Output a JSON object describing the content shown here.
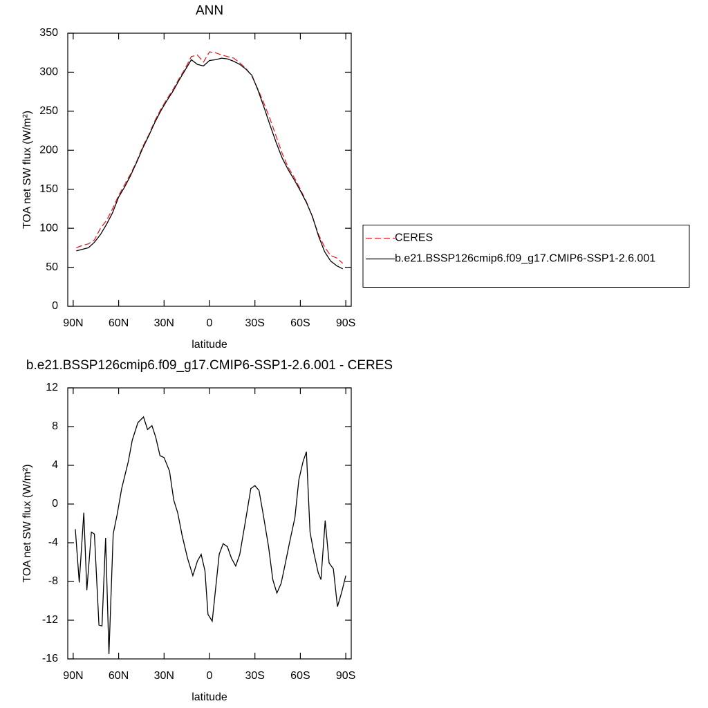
{
  "chart_data": [
    {
      "type": "line",
      "title": "ANN",
      "xlabel": "latitude",
      "ylabel": "TOA net SW flux (W/m²)",
      "x": [
        88,
        84,
        80,
        76,
        72,
        68,
        64,
        60,
        56,
        52,
        48,
        44,
        40,
        36,
        32,
        28,
        24,
        20,
        16,
        12,
        8,
        4,
        0,
        -4,
        -8,
        -12,
        -16,
        -20,
        -24,
        -28,
        -32,
        -36,
        -40,
        -44,
        -48,
        -52,
        -56,
        -60,
        -64,
        -68,
        -72,
        -76,
        -80,
        -84,
        -88
      ],
      "series": [
        {
          "name": "CERES",
          "color": "#e8202a",
          "style": "dashed",
          "values": [
            75,
            78,
            80,
            85,
            100,
            110,
            125,
            142,
            156,
            170,
            186,
            205,
            220,
            238,
            253,
            266,
            278,
            292,
            305,
            320,
            322,
            313,
            326,
            325,
            322,
            320,
            318,
            312,
            305,
            295,
            278,
            260,
            240,
            218,
            196,
            178,
            165,
            150,
            134,
            114,
            92,
            76,
            65,
            62,
            55
          ]
        },
        {
          "name": "b.e21.BSSP126cmip6.f09_g17.CMIP6-SSP1-2.6.001",
          "color": "#000000",
          "style": "solid",
          "values": [
            71,
            73,
            75,
            82,
            92,
            105,
            120,
            140,
            153,
            168,
            185,
            203,
            219,
            236,
            251,
            264,
            276,
            290,
            303,
            316,
            310,
            308,
            315,
            316,
            318,
            317,
            314,
            310,
            304,
            296,
            277,
            255,
            232,
            210,
            190,
            175,
            162,
            148,
            133,
            115,
            90,
            70,
            58,
            52,
            48
          ]
        }
      ],
      "xlim": [
        93.6,
        -93.6
      ],
      "xticks": [
        {
          "value": 90,
          "label": "90N"
        },
        {
          "value": 60,
          "label": "60N"
        },
        {
          "value": 30,
          "label": "30N"
        },
        0,
        {
          "value": -30,
          "label": "30S"
        },
        {
          "value": -60,
          "label": "60S"
        },
        {
          "value": -90,
          "label": "90S"
        }
      ],
      "ylim": [
        0,
        350
      ],
      "yticks": [
        0,
        50,
        100,
        150,
        200,
        250,
        300,
        350
      ],
      "legend": "right"
    },
    {
      "type": "line",
      "title": "b.e21.BSSP126cmip6.f09_g17.CMIP6-SSP1-2.6.001 - CERES",
      "xlabel": "latitude",
      "ylabel": "TOA net SW flux (W/m²)",
      "x": [
        88.6,
        86,
        83,
        81,
        78,
        76,
        73,
        71,
        68.6,
        66.4,
        63.6,
        61,
        58,
        53.6,
        51,
        47.3,
        43.6,
        40.9,
        38,
        35.5,
        32.7,
        30,
        26.4,
        23.6,
        21,
        18,
        14.5,
        11,
        8,
        5.5,
        3,
        1,
        -1.8,
        -6.4,
        -9,
        -11.8,
        -14.5,
        -17.3,
        -20,
        -23.6,
        -27.3,
        -30,
        -32.7,
        -35.5,
        -39,
        -41.8,
        -44.5,
        -47.3,
        -50,
        -52.7,
        -56.4,
        -59,
        -61.8,
        -64,
        -66.4,
        -69,
        -71.8,
        -73.6,
        -76.4,
        -79,
        -81.8,
        -84.5,
        -87.3,
        -90
      ],
      "series": [
        {
          "color": "#000000",
          "style": "solid",
          "values": [
            -2.6,
            -8.1,
            -0.9,
            -8.9,
            -2.9,
            -3.1,
            -12.5,
            -12.6,
            -3.5,
            -15.5,
            -3.1,
            -1.1,
            1.6,
            4.4,
            6.6,
            8.4,
            9,
            7.7,
            8.1,
            6.9,
            5,
            4.8,
            3.4,
            0.4,
            -0.9,
            -3.3,
            -5.6,
            -7.4,
            -5.9,
            -5.2,
            -6.9,
            -11.4,
            -12.1,
            -5.2,
            -4.1,
            -4.4,
            -5.6,
            -6.4,
            -5.2,
            -1.9,
            1.6,
            1.9,
            1.4,
            -1.1,
            -4.4,
            -7.8,
            -9.2,
            -8.2,
            -6.2,
            -4.1,
            -1.4,
            2.5,
            4.4,
            5.4,
            -2.9,
            -5.1,
            -7.1,
            -7.8,
            -1.7,
            -6.1,
            -6.7,
            -10.6,
            -9.1,
            -7.4
          ]
        }
      ],
      "xlim": [
        93.6,
        -93.6
      ],
      "xticks": [
        {
          "value": 90,
          "label": "90N"
        },
        {
          "value": 60,
          "label": "60N"
        },
        {
          "value": 30,
          "label": "30N"
        },
        0,
        {
          "value": -30,
          "label": "30S"
        },
        {
          "value": -60,
          "label": "60S"
        },
        {
          "value": -90,
          "label": "90S"
        }
      ],
      "ylim": [
        -16,
        12
      ],
      "yticks": [
        -16,
        -12,
        -8,
        -4,
        0,
        4,
        8,
        12
      ]
    }
  ]
}
